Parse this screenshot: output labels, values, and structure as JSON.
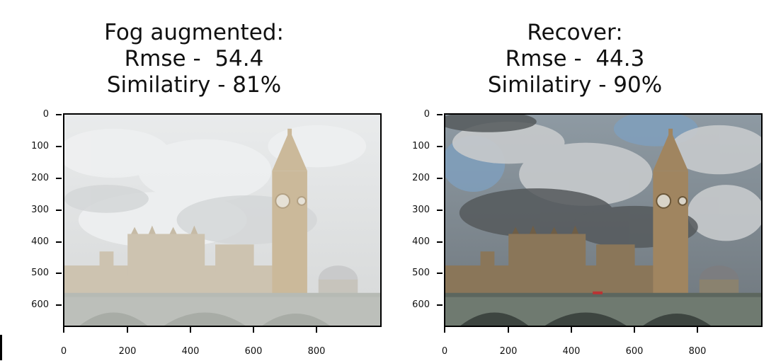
{
  "panels": [
    {
      "title_lines": [
        "Fog augmented:",
        "Rmse -  54.4",
        "Similatiry - 81%"
      ],
      "y_ticks": [
        "0",
        "100",
        "200",
        "300",
        "400",
        "500",
        "600"
      ],
      "x_ticks": [
        "0",
        "200",
        "400",
        "600",
        "800"
      ],
      "image": "fog-augmented-big-ben-photo"
    },
    {
      "title_lines": [
        "Recover:",
        "Rmse -  44.3",
        "Similatiry - 90%"
      ],
      "y_ticks": [
        "0",
        "100",
        "200",
        "300",
        "400",
        "500",
        "600"
      ],
      "x_ticks": [
        "0",
        "200",
        "400",
        "600",
        "800"
      ],
      "image": "recovered-big-ben-photo"
    }
  ],
  "colors": {
    "fog_sky": "#dfe1e2",
    "recover_sky": "#a9b3ba",
    "tower_stone": "#b49a70",
    "bridge_green": "#6f7a70"
  }
}
